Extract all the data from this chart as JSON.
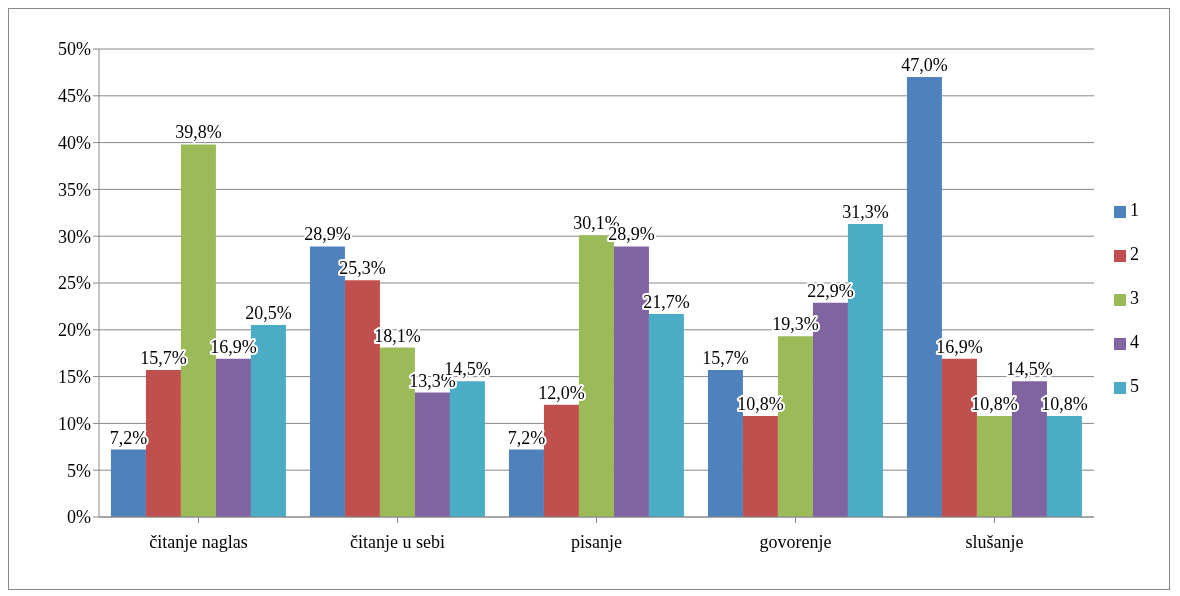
{
  "chart_data": {
    "type": "bar",
    "categories": [
      "čitanje naglas",
      "čitanje u sebi",
      "pisanje",
      "govorenje",
      "slušanje"
    ],
    "series": [
      {
        "name": "1",
        "color": "#4f81bd",
        "values": [
          7.2,
          28.9,
          7.2,
          15.7,
          47.0
        ],
        "value_labels": [
          "7,2%",
          "28,9%",
          "7,2%",
          "15,7%",
          "47,0%"
        ]
      },
      {
        "name": "2",
        "color": "#c0504d",
        "values": [
          15.7,
          25.3,
          12.0,
          10.8,
          16.9
        ],
        "value_labels": [
          "15,7%",
          "25,3%",
          "12,0%",
          "10,8%",
          "16,9%"
        ]
      },
      {
        "name": "3",
        "color": "#9bbb59",
        "values": [
          39.8,
          18.1,
          30.1,
          19.3,
          10.8
        ],
        "value_labels": [
          "39,8%",
          "18,1%",
          "30,1%",
          "19,3%",
          "10,8%"
        ]
      },
      {
        "name": "4",
        "color": "#8064a2",
        "values": [
          16.9,
          13.3,
          28.9,
          22.9,
          14.5
        ],
        "value_labels": [
          "16,9%",
          "13,3%",
          "28,9%",
          "22,9%",
          "14,5%"
        ]
      },
      {
        "name": "5",
        "color": "#4bacc6",
        "values": [
          20.5,
          14.5,
          21.7,
          31.3,
          10.8
        ],
        "value_labels": [
          "20,5%",
          "14,5%",
          "21,7%",
          "31,3%",
          "10,8%"
        ]
      }
    ],
    "ylim": [
      0,
      50
    ],
    "yticks": [
      {
        "value": 0,
        "label": "0%"
      },
      {
        "value": 5,
        "label": "5%"
      },
      {
        "value": 10,
        "label": "10%"
      },
      {
        "value": 15,
        "label": "15%"
      },
      {
        "value": 20,
        "label": "20%"
      },
      {
        "value": 25,
        "label": "25%"
      },
      {
        "value": 30,
        "label": "30%"
      },
      {
        "value": 35,
        "label": "35%"
      },
      {
        "value": 40,
        "label": "40%"
      },
      {
        "value": 45,
        "label": "45%"
      },
      {
        "value": 50,
        "label": "50%"
      }
    ],
    "grid": "y",
    "legend": "right"
  }
}
